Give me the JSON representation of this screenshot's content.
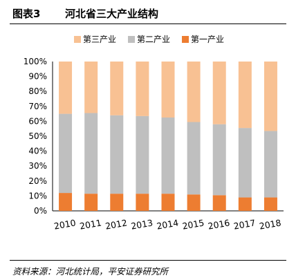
{
  "figure": {
    "label": "图表3",
    "title": "河北省三大产业结构",
    "source": "资料来源：河北统计局，平安证券研究所"
  },
  "chart_data": {
    "type": "bar",
    "stacked": true,
    "categories": [
      "2010",
      "2011",
      "2012",
      "2013",
      "2014",
      "2015",
      "2016",
      "2017",
      "2018"
    ],
    "series": [
      {
        "name": "第一产业",
        "color": "#ED7D31",
        "values": [
          12,
          11.5,
          11.5,
          11.5,
          11.5,
          11,
          10.5,
          9,
          9
        ]
      },
      {
        "name": "第二产业",
        "color": "#BFBFBF",
        "values": [
          53,
          54,
          52.5,
          52,
          51,
          48.5,
          47.5,
          46.5,
          44.5
        ]
      },
      {
        "name": "第三产业",
        "color": "#F8C193",
        "values": [
          35,
          34.5,
          36,
          36.5,
          37.5,
          40.5,
          42,
          44.5,
          46.5
        ]
      }
    ],
    "legend_order": [
      "第三产业",
      "第二产业",
      "第一产业"
    ],
    "yticks": [
      "0%",
      "10%",
      "20%",
      "30%",
      "40%",
      "50%",
      "60%",
      "70%",
      "80%",
      "90%",
      "100%"
    ],
    "ylim": [
      0,
      100
    ],
    "legend_position": "top",
    "grid": false
  }
}
